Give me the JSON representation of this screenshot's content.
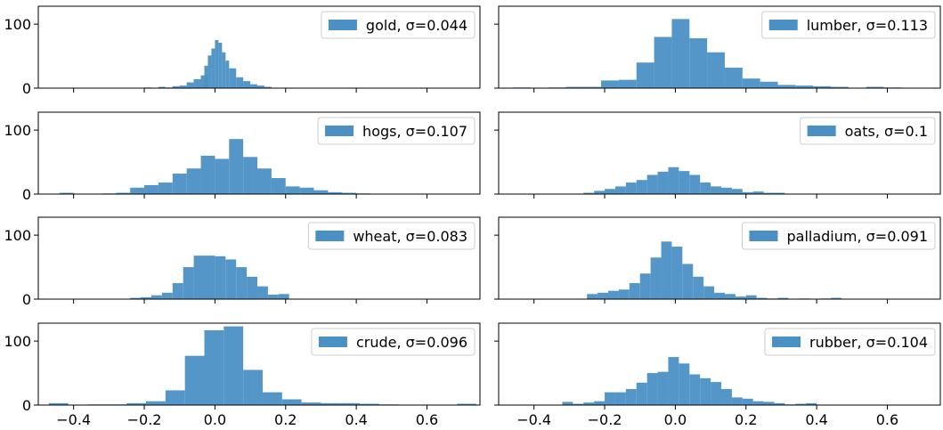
{
  "chart_data": {
    "type": "bar",
    "bar_color": "#4a90c4",
    "x_ticks": [
      -0.4,
      -0.2,
      0.0,
      0.2,
      0.4,
      0.6
    ],
    "x_tick_labels": [
      "−0.4",
      "−0.2",
      "0.0",
      "0.2",
      "0.4",
      "0.6"
    ],
    "xlim": [
      -0.5,
      0.75
    ],
    "y_ticks": [
      0,
      100
    ],
    "y_tick_labels": [
      "0",
      "100"
    ],
    "ylim": [
      0,
      128
    ],
    "legend_placement": "top-right",
    "grid": false,
    "panels": [
      {
        "legend": "gold, σ=0.044",
        "bins": [
          {
            "left": -0.2,
            "width": 0.02,
            "value": 1
          },
          {
            "left": -0.16,
            "width": 0.02,
            "value": 2
          },
          {
            "left": -0.14,
            "width": 0.02,
            "value": 1
          },
          {
            "left": -0.12,
            "width": 0.02,
            "value": 3
          },
          {
            "left": -0.1,
            "width": 0.02,
            "value": 4
          },
          {
            "left": -0.08,
            "width": 0.02,
            "value": 9
          },
          {
            "left": -0.06,
            "width": 0.02,
            "value": 14
          },
          {
            "left": -0.04,
            "width": 0.02,
            "value": 20
          },
          {
            "left": -0.03,
            "width": 0.01,
            "value": 35
          },
          {
            "left": -0.02,
            "width": 0.01,
            "value": 51
          },
          {
            "left": -0.01,
            "width": 0.01,
            "value": 62
          },
          {
            "left": 0.0,
            "width": 0.01,
            "value": 75
          },
          {
            "left": 0.01,
            "width": 0.01,
            "value": 71
          },
          {
            "left": 0.02,
            "width": 0.01,
            "value": 56
          },
          {
            "left": 0.03,
            "width": 0.01,
            "value": 43
          },
          {
            "left": 0.04,
            "width": 0.02,
            "value": 31
          },
          {
            "left": 0.06,
            "width": 0.02,
            "value": 17
          },
          {
            "left": 0.08,
            "width": 0.02,
            "value": 11
          },
          {
            "left": 0.1,
            "width": 0.02,
            "value": 6
          },
          {
            "left": 0.12,
            "width": 0.02,
            "value": 4
          },
          {
            "left": 0.14,
            "width": 0.02,
            "value": 2
          }
        ]
      },
      {
        "legend": "lumber, σ=0.113",
        "bins": [
          {
            "left": -0.46,
            "width": 0.05,
            "value": 1
          },
          {
            "left": -0.36,
            "width": 0.05,
            "value": 1
          },
          {
            "left": -0.31,
            "width": 0.05,
            "value": 2
          },
          {
            "left": -0.26,
            "width": 0.05,
            "value": 2
          },
          {
            "left": -0.21,
            "width": 0.05,
            "value": 12
          },
          {
            "left": -0.16,
            "width": 0.05,
            "value": 13
          },
          {
            "left": -0.11,
            "width": 0.05,
            "value": 40
          },
          {
            "left": -0.06,
            "width": 0.05,
            "value": 80
          },
          {
            "left": -0.01,
            "width": 0.05,
            "value": 108
          },
          {
            "left": 0.04,
            "width": 0.05,
            "value": 78
          },
          {
            "left": 0.09,
            "width": 0.05,
            "value": 56
          },
          {
            "left": 0.14,
            "width": 0.05,
            "value": 32
          },
          {
            "left": 0.19,
            "width": 0.05,
            "value": 15
          },
          {
            "left": 0.24,
            "width": 0.05,
            "value": 10
          },
          {
            "left": 0.29,
            "width": 0.05,
            "value": 5
          },
          {
            "left": 0.34,
            "width": 0.05,
            "value": 4
          },
          {
            "left": 0.39,
            "width": 0.05,
            "value": 3
          },
          {
            "left": 0.44,
            "width": 0.05,
            "value": 2
          },
          {
            "left": 0.54,
            "width": 0.05,
            "value": 2
          },
          {
            "left": 0.59,
            "width": 0.05,
            "value": 1
          }
        ]
      },
      {
        "legend": "hogs, σ=0.107",
        "bins": [
          {
            "left": -0.44,
            "width": 0.04,
            "value": 2
          },
          {
            "left": -0.32,
            "width": 0.04,
            "value": 1
          },
          {
            "left": -0.28,
            "width": 0.04,
            "value": 2
          },
          {
            "left": -0.24,
            "width": 0.04,
            "value": 10
          },
          {
            "left": -0.2,
            "width": 0.04,
            "value": 14
          },
          {
            "left": -0.16,
            "width": 0.04,
            "value": 18
          },
          {
            "left": -0.12,
            "width": 0.04,
            "value": 32
          },
          {
            "left": -0.08,
            "width": 0.04,
            "value": 40
          },
          {
            "left": -0.04,
            "width": 0.04,
            "value": 60
          },
          {
            "left": 0.0,
            "width": 0.04,
            "value": 55
          },
          {
            "left": 0.04,
            "width": 0.04,
            "value": 86
          },
          {
            "left": 0.08,
            "width": 0.04,
            "value": 58
          },
          {
            "left": 0.12,
            "width": 0.04,
            "value": 40
          },
          {
            "left": 0.16,
            "width": 0.04,
            "value": 25
          },
          {
            "left": 0.2,
            "width": 0.04,
            "value": 12
          },
          {
            "left": 0.24,
            "width": 0.04,
            "value": 10
          },
          {
            "left": 0.28,
            "width": 0.04,
            "value": 6
          },
          {
            "left": 0.32,
            "width": 0.04,
            "value": 3
          },
          {
            "left": 0.36,
            "width": 0.04,
            "value": 2
          },
          {
            "left": 0.4,
            "width": 0.04,
            "value": 1
          }
        ]
      },
      {
        "legend": "oats, σ=0.1",
        "bins": [
          {
            "left": -0.26,
            "width": 0.03,
            "value": 2
          },
          {
            "left": -0.23,
            "width": 0.03,
            "value": 5
          },
          {
            "left": -0.2,
            "width": 0.03,
            "value": 8
          },
          {
            "left": -0.17,
            "width": 0.03,
            "value": 12
          },
          {
            "left": -0.14,
            "width": 0.03,
            "value": 18
          },
          {
            "left": -0.11,
            "width": 0.03,
            "value": 22
          },
          {
            "left": -0.08,
            "width": 0.03,
            "value": 30
          },
          {
            "left": -0.05,
            "width": 0.03,
            "value": 35
          },
          {
            "left": -0.02,
            "width": 0.03,
            "value": 42
          },
          {
            "left": 0.01,
            "width": 0.03,
            "value": 36
          },
          {
            "left": 0.04,
            "width": 0.03,
            "value": 30
          },
          {
            "left": 0.07,
            "width": 0.03,
            "value": 18
          },
          {
            "left": 0.1,
            "width": 0.03,
            "value": 12
          },
          {
            "left": 0.13,
            "width": 0.03,
            "value": 10
          },
          {
            "left": 0.16,
            "width": 0.03,
            "value": 8
          },
          {
            "left": 0.19,
            "width": 0.03,
            "value": 3
          },
          {
            "left": 0.22,
            "width": 0.03,
            "value": 4
          },
          {
            "left": 0.25,
            "width": 0.03,
            "value": 2
          },
          {
            "left": 0.28,
            "width": 0.03,
            "value": 2
          }
        ]
      },
      {
        "legend": "wheat, σ=0.083",
        "bins": [
          {
            "left": -0.24,
            "width": 0.03,
            "value": 2
          },
          {
            "left": -0.21,
            "width": 0.03,
            "value": 3
          },
          {
            "left": -0.18,
            "width": 0.03,
            "value": 6
          },
          {
            "left": -0.15,
            "width": 0.03,
            "value": 10
          },
          {
            "left": -0.12,
            "width": 0.03,
            "value": 25
          },
          {
            "left": -0.09,
            "width": 0.03,
            "value": 50
          },
          {
            "left": -0.06,
            "width": 0.03,
            "value": 68
          },
          {
            "left": -0.03,
            "width": 0.03,
            "value": 68
          },
          {
            "left": 0.0,
            "width": 0.03,
            "value": 67
          },
          {
            "left": 0.03,
            "width": 0.03,
            "value": 62
          },
          {
            "left": 0.06,
            "width": 0.03,
            "value": 50
          },
          {
            "left": 0.09,
            "width": 0.03,
            "value": 35
          },
          {
            "left": 0.12,
            "width": 0.03,
            "value": 20
          },
          {
            "left": 0.15,
            "width": 0.03,
            "value": 7
          },
          {
            "left": 0.18,
            "width": 0.03,
            "value": 8
          }
        ]
      },
      {
        "legend": "palladium, σ=0.091",
        "bins": [
          {
            "left": -0.25,
            "width": 0.03,
            "value": 8
          },
          {
            "left": -0.22,
            "width": 0.03,
            "value": 10
          },
          {
            "left": -0.19,
            "width": 0.03,
            "value": 13
          },
          {
            "left": -0.16,
            "width": 0.03,
            "value": 15
          },
          {
            "left": -0.13,
            "width": 0.03,
            "value": 25
          },
          {
            "left": -0.1,
            "width": 0.03,
            "value": 40
          },
          {
            "left": -0.07,
            "width": 0.03,
            "value": 65
          },
          {
            "left": -0.04,
            "width": 0.03,
            "value": 90
          },
          {
            "left": -0.01,
            "width": 0.03,
            "value": 82
          },
          {
            "left": 0.02,
            "width": 0.03,
            "value": 55
          },
          {
            "left": 0.05,
            "width": 0.03,
            "value": 35
          },
          {
            "left": 0.08,
            "width": 0.03,
            "value": 20
          },
          {
            "left": 0.11,
            "width": 0.03,
            "value": 10
          },
          {
            "left": 0.14,
            "width": 0.03,
            "value": 8
          },
          {
            "left": 0.17,
            "width": 0.03,
            "value": 4
          },
          {
            "left": 0.2,
            "width": 0.03,
            "value": 6
          },
          {
            "left": 0.23,
            "width": 0.03,
            "value": 2
          },
          {
            "left": 0.26,
            "width": 0.03,
            "value": 1
          },
          {
            "left": 0.29,
            "width": 0.03,
            "value": 2
          },
          {
            "left": 0.35,
            "width": 0.03,
            "value": 1
          },
          {
            "left": 0.41,
            "width": 0.03,
            "value": 1
          },
          {
            "left": 0.44,
            "width": 0.03,
            "value": 2
          }
        ]
      },
      {
        "legend": "crude, σ=0.096",
        "bins": [
          {
            "left": -0.47,
            "width": 0.055,
            "value": 3
          },
          {
            "left": -0.36,
            "width": 0.055,
            "value": 1
          },
          {
            "left": -0.305,
            "width": 0.055,
            "value": 1
          },
          {
            "left": -0.25,
            "width": 0.055,
            "value": 3
          },
          {
            "left": -0.195,
            "width": 0.055,
            "value": 6
          },
          {
            "left": -0.14,
            "width": 0.055,
            "value": 23
          },
          {
            "left": -0.085,
            "width": 0.055,
            "value": 77
          },
          {
            "left": -0.03,
            "width": 0.055,
            "value": 117
          },
          {
            "left": 0.025,
            "width": 0.055,
            "value": 123
          },
          {
            "left": 0.08,
            "width": 0.055,
            "value": 55
          },
          {
            "left": 0.135,
            "width": 0.055,
            "value": 20
          },
          {
            "left": 0.19,
            "width": 0.055,
            "value": 9
          },
          {
            "left": 0.245,
            "width": 0.055,
            "value": 4
          },
          {
            "left": 0.3,
            "width": 0.055,
            "value": 3
          },
          {
            "left": 0.355,
            "width": 0.055,
            "value": 3
          },
          {
            "left": 0.41,
            "width": 0.055,
            "value": 2
          },
          {
            "left": 0.465,
            "width": 0.055,
            "value": 1
          },
          {
            "left": 0.685,
            "width": 0.055,
            "value": 2
          }
        ]
      },
      {
        "legend": "rubber, σ=0.104",
        "bins": [
          {
            "left": -0.32,
            "width": 0.03,
            "value": 5
          },
          {
            "left": -0.29,
            "width": 0.03,
            "value": 2
          },
          {
            "left": -0.26,
            "width": 0.03,
            "value": 4
          },
          {
            "left": -0.23,
            "width": 0.03,
            "value": 6
          },
          {
            "left": -0.2,
            "width": 0.03,
            "value": 20
          },
          {
            "left": -0.17,
            "width": 0.03,
            "value": 20
          },
          {
            "left": -0.14,
            "width": 0.03,
            "value": 25
          },
          {
            "left": -0.11,
            "width": 0.03,
            "value": 35
          },
          {
            "left": -0.08,
            "width": 0.03,
            "value": 50
          },
          {
            "left": -0.05,
            "width": 0.03,
            "value": 52
          },
          {
            "left": -0.02,
            "width": 0.03,
            "value": 75
          },
          {
            "left": 0.01,
            "width": 0.03,
            "value": 65
          },
          {
            "left": 0.04,
            "width": 0.03,
            "value": 48
          },
          {
            "left": 0.07,
            "width": 0.03,
            "value": 42
          },
          {
            "left": 0.1,
            "width": 0.03,
            "value": 36
          },
          {
            "left": 0.13,
            "width": 0.03,
            "value": 25
          },
          {
            "left": 0.16,
            "width": 0.03,
            "value": 12
          },
          {
            "left": 0.19,
            "width": 0.03,
            "value": 10
          },
          {
            "left": 0.22,
            "width": 0.03,
            "value": 6
          },
          {
            "left": 0.25,
            "width": 0.03,
            "value": 5
          },
          {
            "left": 0.28,
            "width": 0.03,
            "value": 3
          },
          {
            "left": 0.31,
            "width": 0.03,
            "value": 1
          },
          {
            "left": 0.34,
            "width": 0.03,
            "value": 2
          },
          {
            "left": 0.37,
            "width": 0.03,
            "value": 3
          }
        ]
      }
    ]
  }
}
